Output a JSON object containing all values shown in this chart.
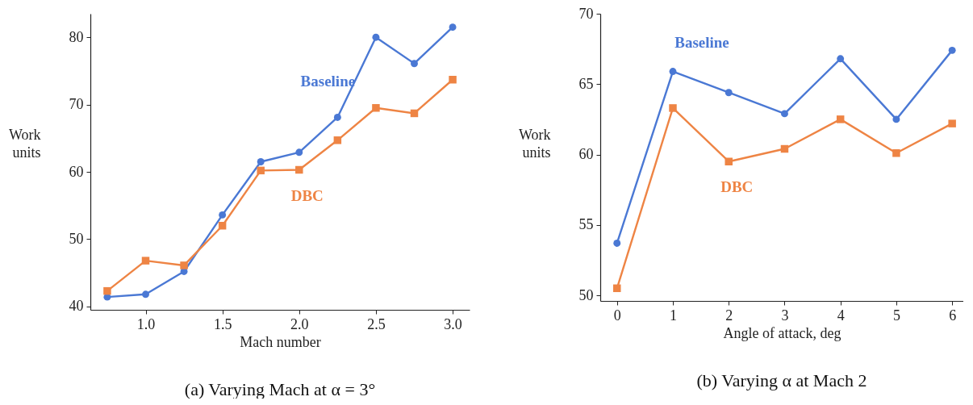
{
  "chart_data": [
    {
      "type": "line",
      "title": "(a) Varying Mach at α = 3°",
      "xlabel": "Mach number",
      "ylabel": "Work units",
      "x": [
        0.75,
        1.0,
        1.25,
        1.5,
        1.75,
        2.0,
        2.25,
        2.5,
        2.75,
        3.0
      ],
      "series": [
        {
          "name": "Baseline",
          "color": "#4a78d4",
          "marker": "circle",
          "values": [
            41.4,
            41.8,
            45.2,
            53.6,
            61.5,
            62.9,
            68.1,
            80.0,
            76.1,
            81.5
          ]
        },
        {
          "name": "DBC",
          "color": "#ee8444",
          "marker": "square",
          "values": [
            42.3,
            46.8,
            46.1,
            52.0,
            60.2,
            60.3,
            64.7,
            69.5,
            68.7,
            73.7
          ]
        }
      ],
      "xlim": [
        0.64,
        3.11
      ],
      "xticks": [
        {
          "value": 1,
          "label": "1.0"
        },
        {
          "value": 1.5,
          "label": "1.5"
        },
        {
          "value": 2,
          "label": "2.0"
        },
        {
          "value": 2.5,
          "label": "2.5"
        },
        {
          "value": 3,
          "label": "3.0"
        }
      ],
      "ylim": [
        39.5,
        83.5
      ],
      "yticks": [
        40,
        50,
        60,
        70,
        80
      ],
      "grid": false,
      "legend": false
    },
    {
      "type": "line",
      "title": "(b) Varying α at Mach 2",
      "xlabel": "Angle of attack, deg",
      "ylabel": "Work units",
      "x": [
        0,
        1,
        2,
        3,
        4,
        5,
        6
      ],
      "series": [
        {
          "name": "Baseline",
          "color": "#4a78d4",
          "marker": "circle",
          "values": [
            53.7,
            65.9,
            64.4,
            62.9,
            66.8,
            62.5,
            67.4
          ]
        },
        {
          "name": "DBC",
          "color": "#ee8444",
          "marker": "square",
          "values": [
            50.5,
            63.3,
            59.5,
            60.4,
            62.5,
            60.1,
            62.2
          ]
        }
      ],
      "xlim": [
        -0.3,
        6.2
      ],
      "xticks": [
        0,
        1,
        2,
        3,
        4,
        5,
        6
      ],
      "ylim": [
        49.6,
        70
      ],
      "yticks": [
        50,
        55,
        60,
        65,
        70
      ],
      "grid": false,
      "legend": false
    }
  ]
}
